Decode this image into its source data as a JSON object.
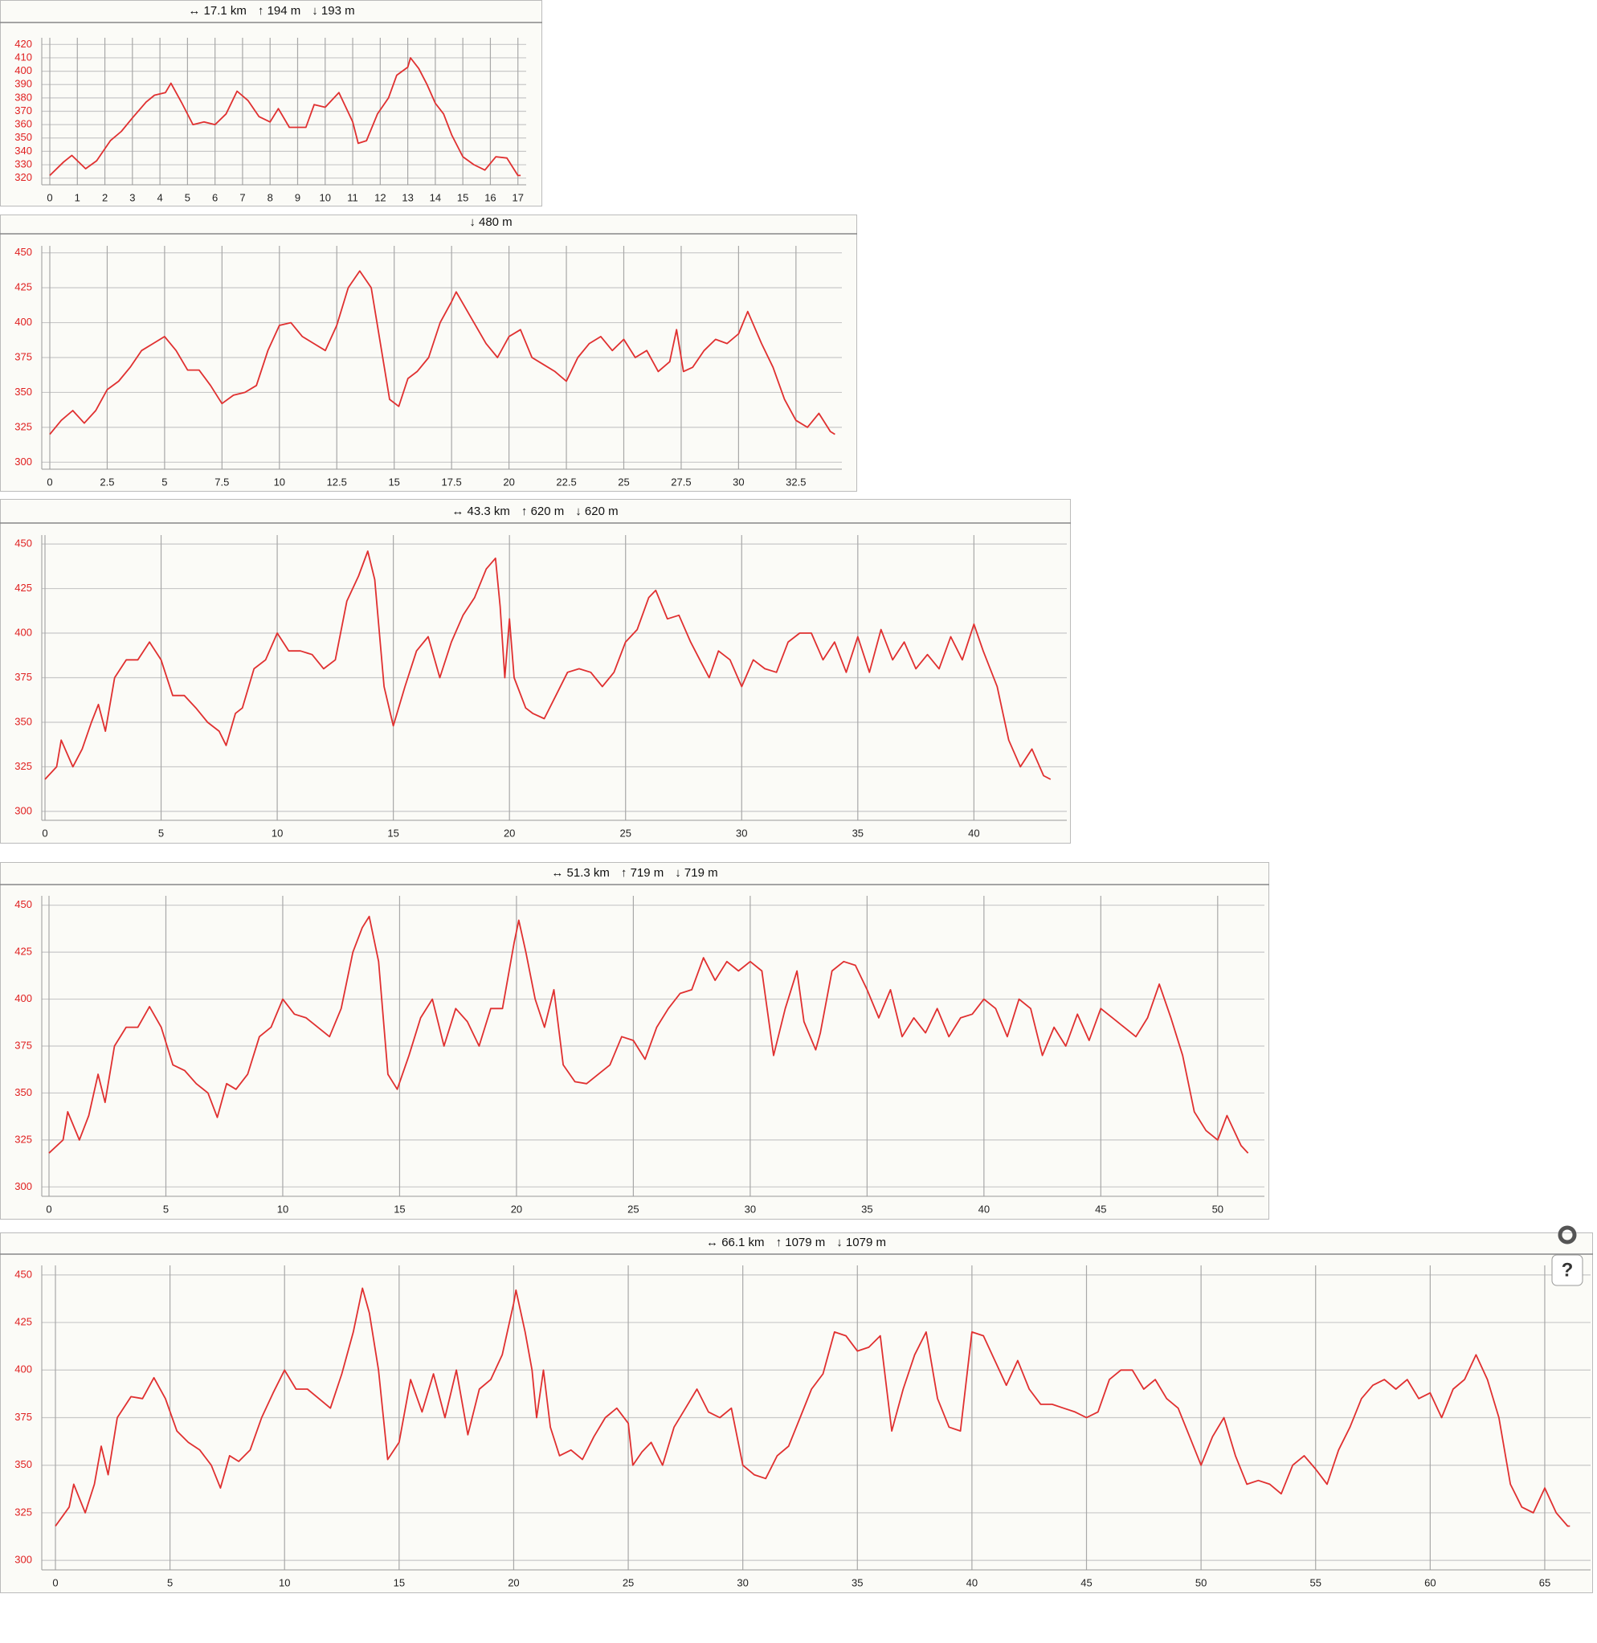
{
  "chart_data": [
    {
      "type": "line",
      "stats": [
        "↔ 17.1 km",
        "↑ 194 m",
        "↓ 193 m"
      ],
      "color": "#e03030",
      "x": [
        0,
        0.5,
        0.8,
        1.3,
        1.7,
        2.2,
        2.6,
        3,
        3.5,
        3.8,
        4.2,
        4.4,
        4.8,
        5.2,
        5.6,
        6,
        6.4,
        6.8,
        7.2,
        7.6,
        8,
        8.3,
        8.7,
        9.3,
        9.6,
        10,
        10.5,
        11,
        11.2,
        11.5,
        11.9,
        12.3,
        12.6,
        13,
        13.1,
        13.4,
        13.7,
        14,
        14.3,
        14.6,
        15,
        15.4,
        15.8,
        16.2,
        16.6,
        17,
        17.1
      ],
      "values": [
        322,
        332,
        337,
        327,
        333,
        348,
        355,
        365,
        377,
        382,
        384,
        391,
        376,
        360,
        362,
        360,
        368,
        385,
        378,
        366,
        362,
        372,
        358,
        358,
        375,
        373,
        384,
        362,
        346,
        348,
        368,
        380,
        397,
        403,
        410,
        402,
        390,
        376,
        368,
        352,
        336,
        330,
        326,
        336,
        335,
        322,
        322
      ],
      "xlim": [
        0,
        17.3
      ],
      "ylim": [
        315,
        425
      ],
      "xticks": [
        0,
        1,
        2,
        3,
        4,
        5,
        6,
        7,
        8,
        9,
        10,
        11,
        12,
        13,
        14,
        15,
        16,
        17
      ],
      "yticks": [
        320,
        330,
        340,
        350,
        360,
        370,
        380,
        390,
        400,
        410,
        420
      ],
      "grid": true
    },
    {
      "type": "line",
      "stats": [
        "↓ 480 m"
      ],
      "color": "#e03030",
      "x": [
        0,
        0.5,
        1,
        1.5,
        2,
        2.5,
        3,
        3.5,
        4,
        4.5,
        5,
        5.5,
        6,
        6.5,
        7,
        7.5,
        8,
        8.5,
        9,
        9.5,
        10,
        10.5,
        11,
        11.5,
        12,
        12.5,
        13,
        13.5,
        14,
        14.3,
        14.8,
        15.2,
        15.6,
        16,
        16.5,
        17,
        17.5,
        17.7,
        18.3,
        19,
        19.5,
        20,
        20.5,
        21,
        21.5,
        22,
        22.5,
        23,
        23.5,
        24,
        24.5,
        25,
        25.5,
        26,
        26.5,
        27,
        27.3,
        27.6,
        28,
        28.5,
        29,
        29.5,
        30,
        30.4,
        31,
        31.5,
        32,
        32.5,
        33,
        33.5,
        34,
        34.2
      ],
      "values": [
        320,
        330,
        337,
        328,
        337,
        352,
        358,
        368,
        380,
        385,
        390,
        380,
        366,
        366,
        355,
        342,
        348,
        350,
        355,
        380,
        398,
        400,
        390,
        385,
        380,
        398,
        425,
        437,
        425,
        395,
        345,
        340,
        360,
        365,
        375,
        400,
        415,
        422,
        405,
        385,
        375,
        390,
        395,
        375,
        370,
        365,
        358,
        375,
        385,
        390,
        380,
        388,
        375,
        380,
        365,
        372,
        395,
        365,
        368,
        380,
        388,
        385,
        392,
        408,
        385,
        368,
        345,
        330,
        325,
        335,
        322,
        320
      ],
      "xlim": [
        0,
        34.5
      ],
      "ylim": [
        295,
        455
      ],
      "xticks": [
        0,
        2.5,
        5,
        7.5,
        10,
        12.5,
        15,
        17.5,
        20,
        22.5,
        25,
        27.5,
        30,
        32.5
      ],
      "yticks": [
        300,
        325,
        350,
        375,
        400,
        425,
        450
      ],
      "grid": true
    },
    {
      "type": "line",
      "stats": [
        "↔ 43.3 km",
        "↑ 620 m",
        "↓ 620 m"
      ],
      "color": "#e03030",
      "x": [
        0,
        0.5,
        0.7,
        1.2,
        1.6,
        2,
        2.3,
        2.6,
        3,
        3.5,
        4,
        4.5,
        5,
        5.5,
        6,
        6.5,
        7,
        7.5,
        7.8,
        8.2,
        8.5,
        9,
        9.5,
        10,
        10.5,
        11,
        11.5,
        12,
        12.5,
        13,
        13.5,
        13.9,
        14.2,
        14.6,
        15,
        15.5,
        16,
        16.5,
        17,
        17.5,
        18,
        18.5,
        19,
        19.4,
        19.6,
        19.8,
        20,
        20.2,
        20.7,
        21,
        21.5,
        22,
        22.5,
        23,
        23.5,
        24,
        24.5,
        25,
        25.5,
        26,
        26.3,
        26.8,
        27.3,
        27.8,
        28.2,
        28.6,
        29,
        29.5,
        30,
        30.5,
        31,
        31.5,
        32,
        32.5,
        33,
        33.5,
        34,
        34.5,
        35,
        35.5,
        36,
        36.5,
        37,
        37.5,
        38,
        38.5,
        39,
        39.5,
        40,
        40.4,
        41,
        41.5,
        42,
        42.5,
        43,
        43.3
      ],
      "values": [
        318,
        325,
        340,
        325,
        335,
        350,
        360,
        345,
        375,
        385,
        385,
        395,
        385,
        365,
        365,
        358,
        350,
        345,
        337,
        355,
        358,
        380,
        385,
        400,
        390,
        390,
        388,
        380,
        385,
        418,
        432,
        446,
        430,
        370,
        348,
        370,
        390,
        398,
        375,
        395,
        410,
        420,
        436,
        442,
        415,
        375,
        408,
        375,
        358,
        355,
        352,
        365,
        378,
        380,
        378,
        370,
        378,
        395,
        402,
        420,
        424,
        408,
        410,
        395,
        385,
        375,
        390,
        385,
        370,
        385,
        380,
        378,
        395,
        400,
        400,
        385,
        395,
        378,
        398,
        378,
        402,
        385,
        395,
        380,
        388,
        380,
        398,
        385,
        405,
        390,
        370,
        340,
        325,
        335,
        320,
        318
      ],
      "xlim": [
        0,
        44
      ],
      "ylim": [
        295,
        455
      ],
      "xticks": [
        0,
        5,
        10,
        15,
        20,
        25,
        30,
        35,
        40
      ],
      "yticks": [
        300,
        325,
        350,
        375,
        400,
        425,
        450
      ],
      "grid": true
    },
    {
      "type": "line",
      "stats": [
        "↔ 51.3 km",
        "↑ 719 m",
        "↓ 719 m"
      ],
      "color": "#e03030",
      "x": [
        0,
        0.6,
        0.8,
        1.3,
        1.7,
        2.1,
        2.4,
        2.8,
        3.3,
        3.8,
        4.3,
        4.8,
        5.3,
        5.8,
        6.3,
        6.8,
        7.2,
        7.6,
        8,
        8.5,
        9,
        9.5,
        10,
        10.5,
        11,
        11.5,
        12,
        12.5,
        13,
        13.4,
        13.7,
        14.1,
        14.5,
        14.9,
        15.4,
        15.9,
        16.4,
        16.9,
        17.4,
        17.9,
        18.4,
        18.9,
        19.4,
        19.9,
        20.1,
        20.4,
        20.8,
        21.2,
        21.6,
        22,
        22.5,
        23,
        23.5,
        24,
        24.5,
        25,
        25.5,
        26,
        26.5,
        27,
        27.5,
        28,
        28.5,
        29,
        29.5,
        30,
        30.5,
        31,
        31.5,
        32,
        32.3,
        32.8,
        33,
        33.5,
        34,
        34.5,
        35,
        35.5,
        36,
        36.5,
        37,
        37.5,
        38,
        38.5,
        39,
        39.5,
        40,
        40.5,
        41,
        41.5,
        42,
        42.5,
        43,
        43.5,
        44,
        44.5,
        45,
        45.5,
        46,
        46.5,
        47,
        47.5,
        48,
        48.5,
        49,
        49.5,
        50,
        50.4,
        51,
        51.3
      ],
      "values": [
        318,
        325,
        340,
        325,
        338,
        360,
        345,
        375,
        385,
        385,
        396,
        385,
        365,
        362,
        355,
        350,
        337,
        355,
        352,
        360,
        380,
        385,
        400,
        392,
        390,
        385,
        380,
        395,
        425,
        438,
        444,
        420,
        360,
        352,
        370,
        390,
        400,
        375,
        395,
        388,
        375,
        395,
        395,
        430,
        442,
        425,
        400,
        385,
        405,
        365,
        356,
        355,
        360,
        365,
        380,
        378,
        368,
        385,
        395,
        403,
        405,
        422,
        410,
        420,
        415,
        420,
        415,
        370,
        395,
        415,
        388,
        373,
        382,
        415,
        420,
        418,
        405,
        390,
        405,
        380,
        390,
        382,
        395,
        380,
        390,
        392,
        400,
        395,
        380,
        400,
        395,
        370,
        385,
        375,
        392,
        378,
        395,
        390,
        385,
        380,
        390,
        408,
        390,
        370,
        340,
        330,
        325,
        338,
        322,
        318
      ],
      "xlim": [
        0,
        52
      ],
      "ylim": [
        295,
        455
      ],
      "xticks": [
        0,
        5,
        10,
        15,
        20,
        25,
        30,
        35,
        40,
        45,
        50
      ],
      "yticks": [
        300,
        325,
        350,
        375,
        400,
        425,
        450
      ],
      "grid": true
    },
    {
      "type": "line",
      "stats": [
        "↔ 66.1 km",
        "↑ 1079 m",
        "↓ 1079 m"
      ],
      "color": "#e03030",
      "x": [
        0,
        0.6,
        0.8,
        1.3,
        1.7,
        2,
        2.3,
        2.7,
        3.3,
        3.8,
        4.3,
        4.8,
        5.3,
        5.8,
        6.3,
        6.8,
        7.2,
        7.6,
        8,
        8.5,
        9,
        9.5,
        10,
        10.5,
        11,
        11.5,
        12,
        12.5,
        13,
        13.4,
        13.7,
        14.1,
        14.5,
        15,
        15.5,
        16,
        16.5,
        17,
        17.5,
        18,
        18.5,
        19,
        19.5,
        20,
        20.1,
        20.5,
        20.8,
        21,
        21.3,
        21.6,
        22,
        22.5,
        23,
        23.5,
        24,
        24.5,
        25,
        25.2,
        25.6,
        26,
        26.5,
        27,
        27.5,
        28,
        28.5,
        29,
        29.5,
        30,
        30.5,
        31,
        31.5,
        32,
        32.5,
        33,
        33.5,
        34,
        34.5,
        35,
        35.5,
        36,
        36.5,
        37,
        37.5,
        38,
        38.5,
        39,
        39.5,
        40,
        40.5,
        41,
        41.5,
        42,
        42.5,
        43,
        43.5,
        44,
        44.5,
        45,
        45.5,
        46,
        46.5,
        47,
        47.5,
        48,
        48.5,
        49,
        49.5,
        50,
        50.5,
        51,
        51.5,
        52,
        52.5,
        53,
        53.5,
        54,
        54.5,
        55,
        55.5,
        56,
        56.5,
        57,
        57.5,
        58,
        58.5,
        59,
        59.5,
        60,
        60.5,
        61,
        61.5,
        62,
        62.5,
        63,
        63.5,
        64,
        64.5,
        65,
        65.5,
        66,
        66.1
      ],
      "values": [
        318,
        328,
        340,
        325,
        340,
        360,
        345,
        375,
        386,
        385,
        396,
        385,
        368,
        362,
        358,
        350,
        338,
        355,
        352,
        358,
        375,
        388,
        400,
        390,
        390,
        385,
        380,
        398,
        420,
        443,
        430,
        400,
        353,
        362,
        395,
        378,
        398,
        375,
        400,
        366,
        390,
        395,
        408,
        435,
        442,
        420,
        400,
        375,
        400,
        370,
        355,
        358,
        353,
        365,
        375,
        380,
        372,
        350,
        357,
        362,
        350,
        370,
        380,
        390,
        378,
        375,
        380,
        350,
        345,
        343,
        355,
        360,
        375,
        390,
        398,
        420,
        418,
        410,
        412,
        418,
        368,
        390,
        408,
        420,
        385,
        370,
        368,
        420,
        418,
        405,
        392,
        405,
        390,
        382,
        382,
        380,
        378,
        375,
        378,
        395,
        400,
        400,
        390,
        395,
        385,
        380,
        365,
        350,
        365,
        375,
        355,
        340,
        342,
        340,
        335,
        350,
        355,
        348,
        340,
        358,
        370,
        385,
        392,
        395,
        390,
        395,
        385,
        388,
        375,
        390,
        395,
        408,
        395,
        375,
        340,
        328,
        325,
        338,
        325,
        318,
        318
      ],
      "xlim": [
        0,
        67
      ],
      "ylim": [
        295,
        455
      ],
      "xticks": [
        0,
        5,
        10,
        15,
        20,
        25,
        30,
        35,
        40,
        45,
        50,
        55,
        60,
        65
      ],
      "yticks": [
        300,
        325,
        350,
        375,
        400,
        425,
        450
      ],
      "grid": true
    }
  ],
  "help_button": "?"
}
